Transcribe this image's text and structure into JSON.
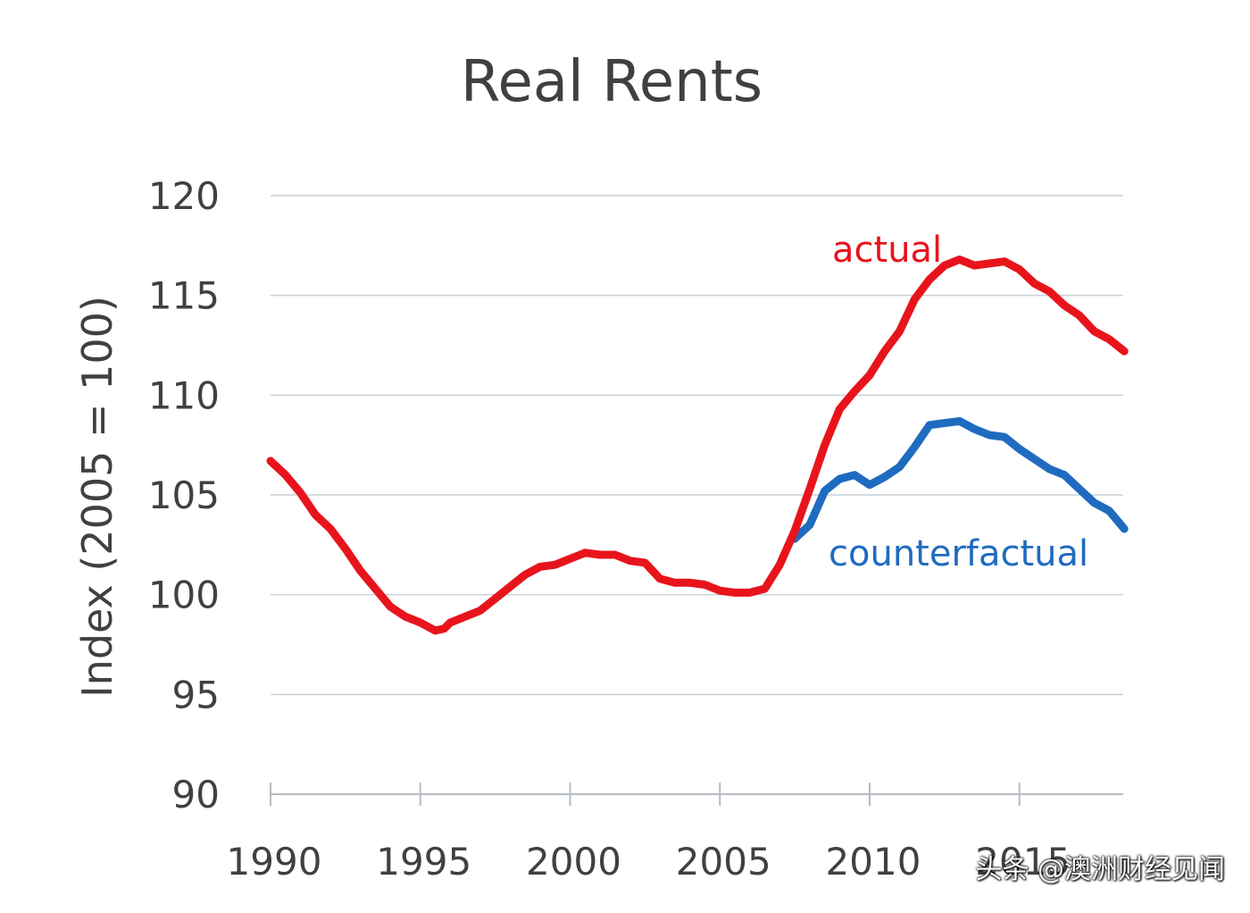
{
  "chart_data": {
    "type": "line",
    "title": "Real Rents",
    "ylabel": "Index (2005 = 100)",
    "xlabel": "",
    "xlim": [
      1990,
      2018.5
    ],
    "ylim": [
      90,
      120
    ],
    "xticks": [
      1990,
      1995,
      2000,
      2005,
      2010,
      2015
    ],
    "yticks": [
      90,
      95,
      100,
      105,
      110,
      115,
      120
    ],
    "grid": true,
    "legend": "none",
    "series": [
      {
        "name": "actual",
        "color": "#e8141c",
        "x": [
          1990,
          1990.5,
          1991,
          1991.5,
          1992,
          1992.5,
          1993,
          1993.5,
          1994,
          1994.5,
          1995,
          1995.5,
          1995.8,
          1996,
          1996.5,
          1997,
          1997.5,
          1998,
          1998.5,
          1999,
          1999.5,
          2000,
          2000.5,
          2001,
          2001.5,
          2002,
          2002.5,
          2003,
          2003.5,
          2004,
          2004.5,
          2005,
          2005.5,
          2006,
          2006.5,
          2007,
          2007.5,
          2008,
          2008.5,
          2009,
          2009.5,
          2010,
          2010.5,
          2011,
          2011.5,
          2012,
          2012.5,
          2013,
          2013.5,
          2014,
          2014.5,
          2015,
          2015.5,
          2016,
          2016.5,
          2017,
          2017.5,
          2018,
          2018.5
        ],
        "values": [
          106.7,
          106.0,
          105.1,
          104.0,
          103.3,
          102.3,
          101.2,
          100.3,
          99.4,
          98.9,
          98.6,
          98.2,
          98.3,
          98.6,
          98.9,
          99.2,
          99.8,
          100.4,
          101.0,
          101.4,
          101.5,
          101.8,
          102.1,
          102.0,
          102.0,
          101.7,
          101.6,
          100.8,
          100.6,
          100.6,
          100.5,
          100.2,
          100.1,
          100.1,
          100.3,
          101.5,
          103.2,
          105.3,
          107.5,
          109.3,
          110.2,
          111.0,
          112.2,
          113.2,
          114.8,
          115.8,
          116.5,
          116.8,
          116.5,
          116.6,
          116.7,
          116.3,
          115.6,
          115.2,
          114.5,
          114.0,
          113.2,
          112.8,
          112.2
        ]
      },
      {
        "name": "counterfactual",
        "color": "#1f6bbf",
        "x": [
          2007.5,
          2008,
          2008.5,
          2009,
          2009.5,
          2010,
          2010.5,
          2011,
          2011.5,
          2012,
          2012.5,
          2013,
          2013.5,
          2014,
          2014.5,
          2015,
          2015.5,
          2016,
          2016.5,
          2017,
          2017.5,
          2018,
          2018.5
        ],
        "values": [
          102.8,
          103.5,
          105.2,
          105.8,
          106.0,
          105.5,
          105.9,
          106.4,
          107.4,
          108.5,
          108.6,
          108.7,
          108.3,
          108.0,
          107.9,
          107.3,
          106.8,
          106.3,
          106.0,
          105.3,
          104.6,
          104.2,
          103.3
        ]
      }
    ],
    "annotations": [
      {
        "text": "actual",
        "color": "#e8141c"
      },
      {
        "text": "counterfactual",
        "color": "#1f6bbf"
      }
    ]
  },
  "watermark": "头条 @澳洲财经见闻"
}
